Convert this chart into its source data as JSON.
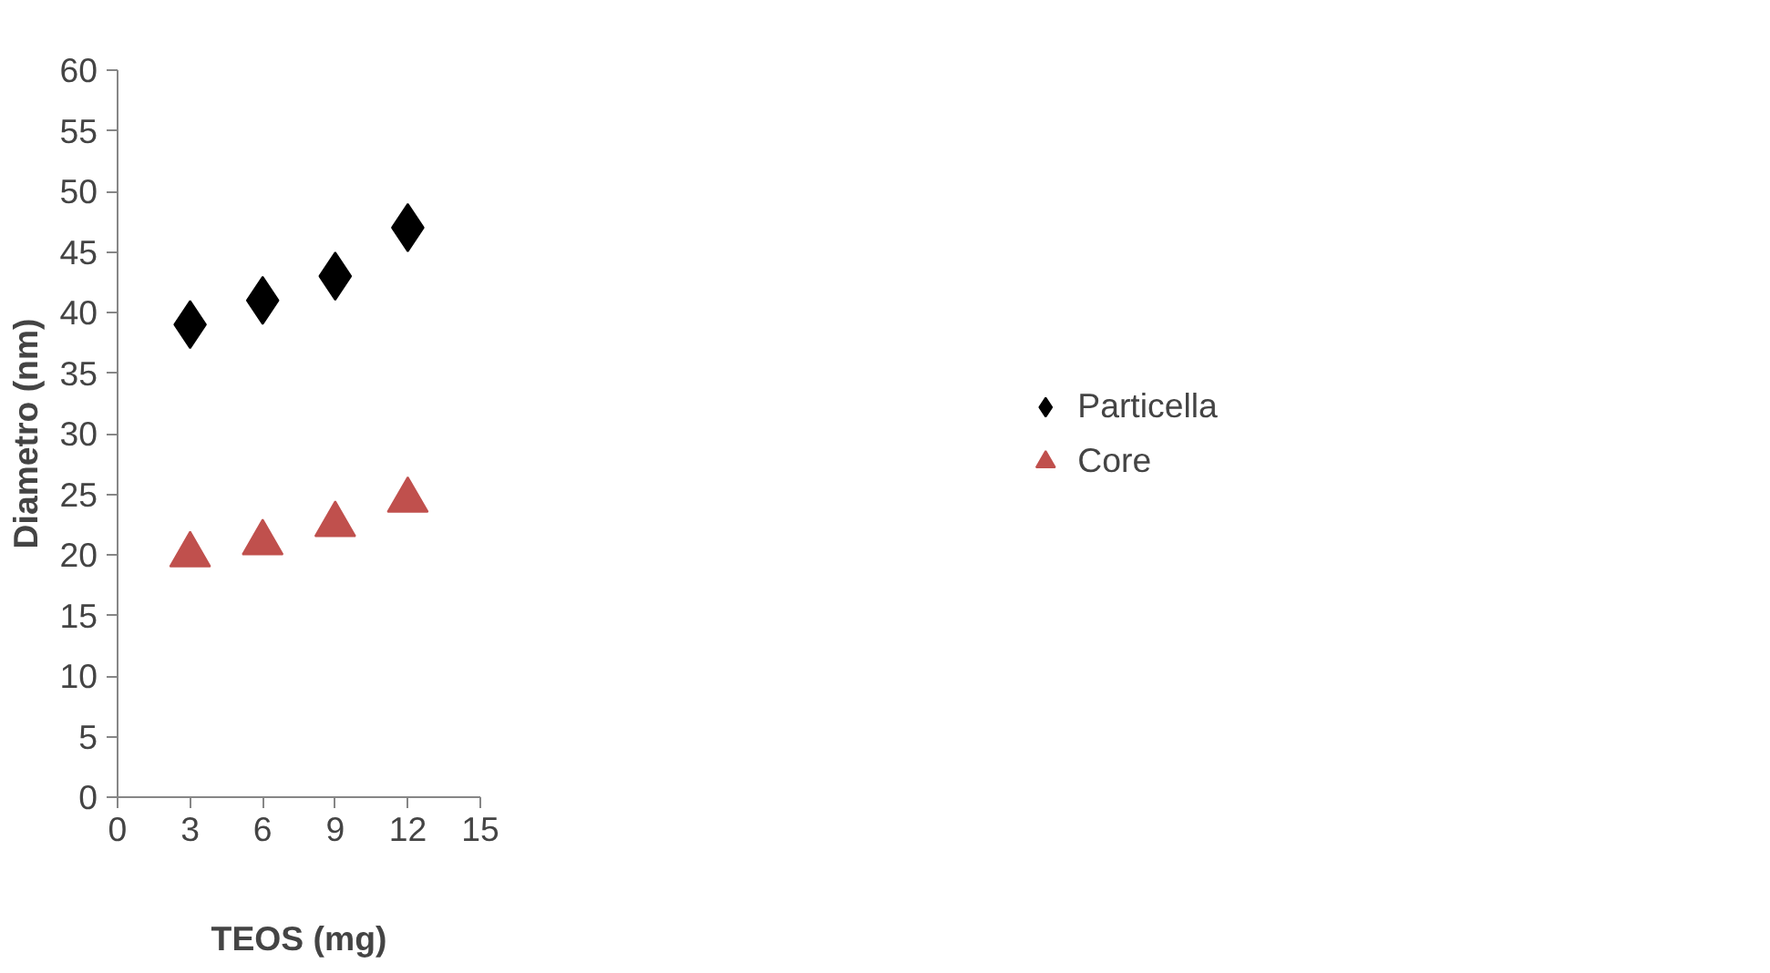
{
  "chart_data": {
    "type": "scatter",
    "xlabel": "TEOS (mg)",
    "ylabel": "Diametro (nm)",
    "x": [
      3,
      6,
      9,
      12
    ],
    "series": [
      {
        "name": "Particella",
        "color": "#000000",
        "marker": "diamond",
        "values": [
          39,
          41,
          43,
          47
        ]
      },
      {
        "name": "Core",
        "color": "#c0504d",
        "marker": "triangle",
        "values": [
          20,
          21,
          22.5,
          24.5
        ]
      }
    ],
    "xlim": [
      0,
      15
    ],
    "xticks": [
      0,
      3,
      6,
      9,
      12,
      15
    ],
    "ylim": [
      0,
      60
    ],
    "yticks": [
      0,
      5,
      10,
      15,
      20,
      25,
      30,
      35,
      40,
      45,
      50,
      55,
      60
    ],
    "grid": false,
    "legend": "right"
  }
}
